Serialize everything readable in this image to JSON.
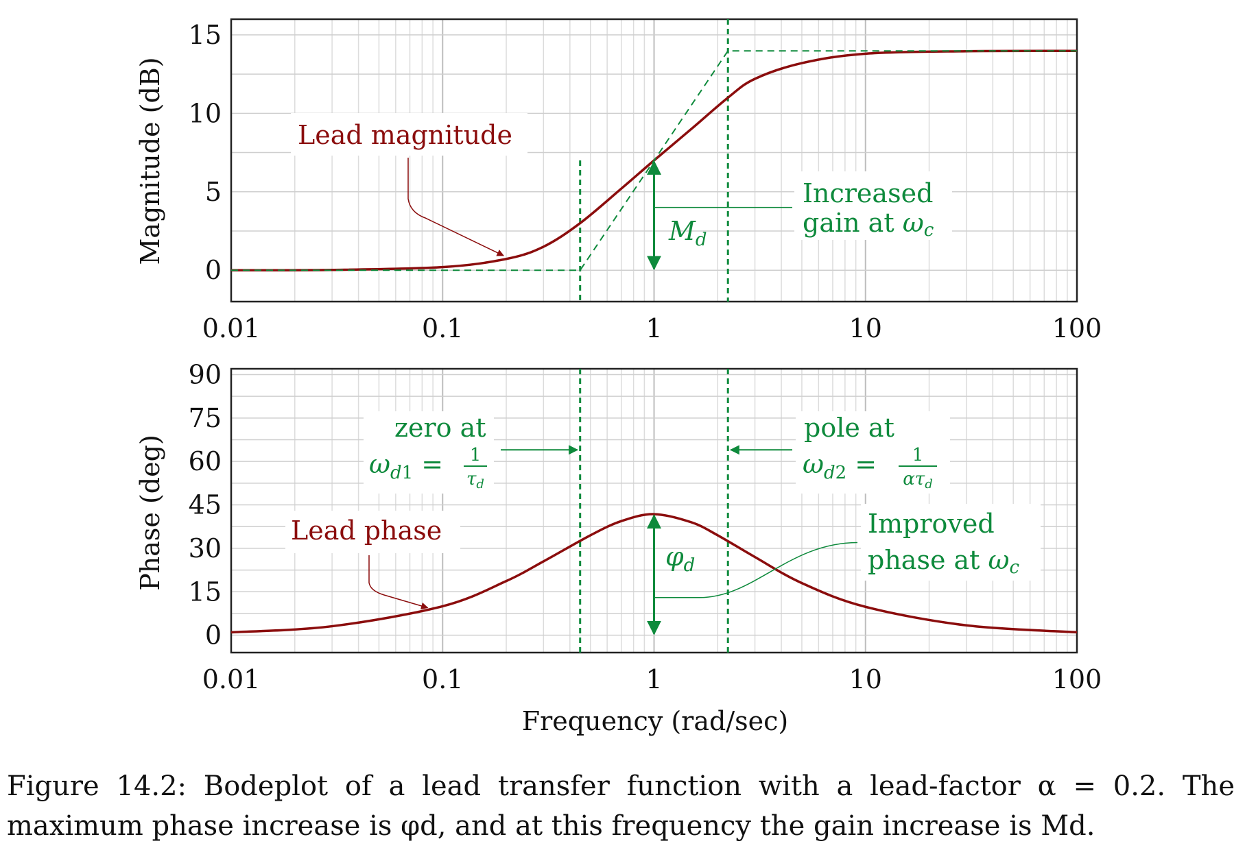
{
  "chart_data": [
    {
      "type": "line",
      "panel": "magnitude",
      "ylabel": "Magnitude (dB)",
      "xscale": "log",
      "xlim": [
        0.01,
        100
      ],
      "ylim": [
        -2,
        16
      ],
      "xticks": [
        0.01,
        0.1,
        1,
        10,
        100
      ],
      "xtick_labels": [
        "0.01",
        "0.1",
        "1",
        "10",
        "100"
      ],
      "yticks": [
        0,
        5,
        10,
        15
      ],
      "ytick_labels": [
        "0",
        "5",
        "10",
        "15"
      ],
      "grid": true,
      "series": [
        {
          "kind": "curve",
          "color": "#8b0d0d",
          "x": [
            0.01,
            0.03,
            0.1,
            0.2,
            0.3,
            0.447,
            0.7,
            1,
            1.5,
            2.236,
            3,
            5,
            10,
            30,
            100
          ],
          "y": [
            0.0,
            0.02,
            0.2,
            0.72,
            1.5,
            3.0,
            5.2,
            7.0,
            9.0,
            11.0,
            12.2,
            13.2,
            13.8,
            13.96,
            13.98
          ]
        },
        {
          "kind": "asymptote",
          "style": "dashed",
          "color": "#0e8a3c",
          "x": [
            0.01,
            0.447,
            2.236,
            100
          ],
          "y": [
            0,
            0,
            13.98,
            13.98
          ]
        }
      ],
      "vlines": [
        0.447,
        2.236
      ],
      "annotations": [
        {
          "text": "Lead magnitude",
          "color": "#8b0d0d",
          "target": [
            0.2,
            0.8
          ]
        },
        {
          "text_lines": [
            "Increased",
            "gain at ωc"
          ],
          "color": "#0e8a3c"
        },
        {
          "text": "Md",
          "color": "#0e8a3c",
          "arrow_x": 1,
          "from_y": 0,
          "to_y": 7.0
        }
      ]
    },
    {
      "type": "line",
      "panel": "phase",
      "ylabel": "Phase (deg)",
      "xlabel": "Frequency (rad/sec)",
      "xscale": "log",
      "xlim": [
        0.01,
        100
      ],
      "ylim": [
        -6,
        92
      ],
      "xticks": [
        0.01,
        0.1,
        1,
        10,
        100
      ],
      "xtick_labels": [
        "0.01",
        "0.1",
        "1",
        "10",
        "100"
      ],
      "yticks": [
        0,
        15,
        30,
        45,
        60,
        75,
        90
      ],
      "ytick_labels": [
        "0",
        "15",
        "30",
        "45",
        "60",
        "75",
        "90"
      ],
      "grid": true,
      "series": [
        {
          "kind": "curve",
          "color": "#8b0d0d",
          "x": [
            0.01,
            0.03,
            0.1,
            0.2,
            0.3,
            0.5,
            0.7,
            1,
            1.5,
            2,
            3,
            5,
            10,
            30,
            100
          ],
          "y": [
            1.0,
            3.1,
            10.0,
            18.7,
            25.5,
            34.5,
            39.4,
            41.8,
            39.0,
            34.5,
            27.0,
            18.0,
            9.8,
            3.4,
            1.0
          ]
        }
      ],
      "vlines": [
        0.447,
        2.236
      ],
      "annotations": [
        {
          "text": "Lead phase",
          "color": "#8b0d0d",
          "target": [
            0.085,
            9
          ]
        },
        {
          "text_lines": [
            "zero at",
            "ωd1 = 1/τd"
          ],
          "color": "#0e8a3c",
          "arrow_to_x": 0.447
        },
        {
          "text_lines": [
            "pole at",
            "ωd2 = 1/ατd"
          ],
          "color": "#0e8a3c",
          "arrow_to_x": 2.236
        },
        {
          "text_lines": [
            "Improved",
            "phase at ωc"
          ],
          "color": "#0e8a3c"
        },
        {
          "text": "φd",
          "color": "#0e8a3c",
          "arrow_x": 1,
          "from_y": 0,
          "to_y": 41.8
        }
      ]
    }
  ],
  "labels": {
    "mag_ylabel": "Magnitude (dB)",
    "phase_ylabel": "Phase (deg)",
    "xlabel": "Frequency (rad/sec)",
    "lead_magnitude": "Lead magnitude",
    "increased_1": "Increased",
    "increased_2": "gain at ",
    "lead_phase": "Lead phase",
    "zero_at": "zero at",
    "pole_at": "pole at",
    "improved_1": "Improved",
    "improved_2": "phase at "
  },
  "caption": {
    "line1": "Figure 14.2: Bodeplot of a lead transfer function with a lead-factor α = 0.2.  The",
    "line2": "maximum phase increase is φd, and at this frequency the gain increase is Md."
  },
  "colors": {
    "curve": "#8b0d0d",
    "annotation": "#0e8a3c",
    "grid": "#c8c8c8",
    "frame": "#222222"
  }
}
